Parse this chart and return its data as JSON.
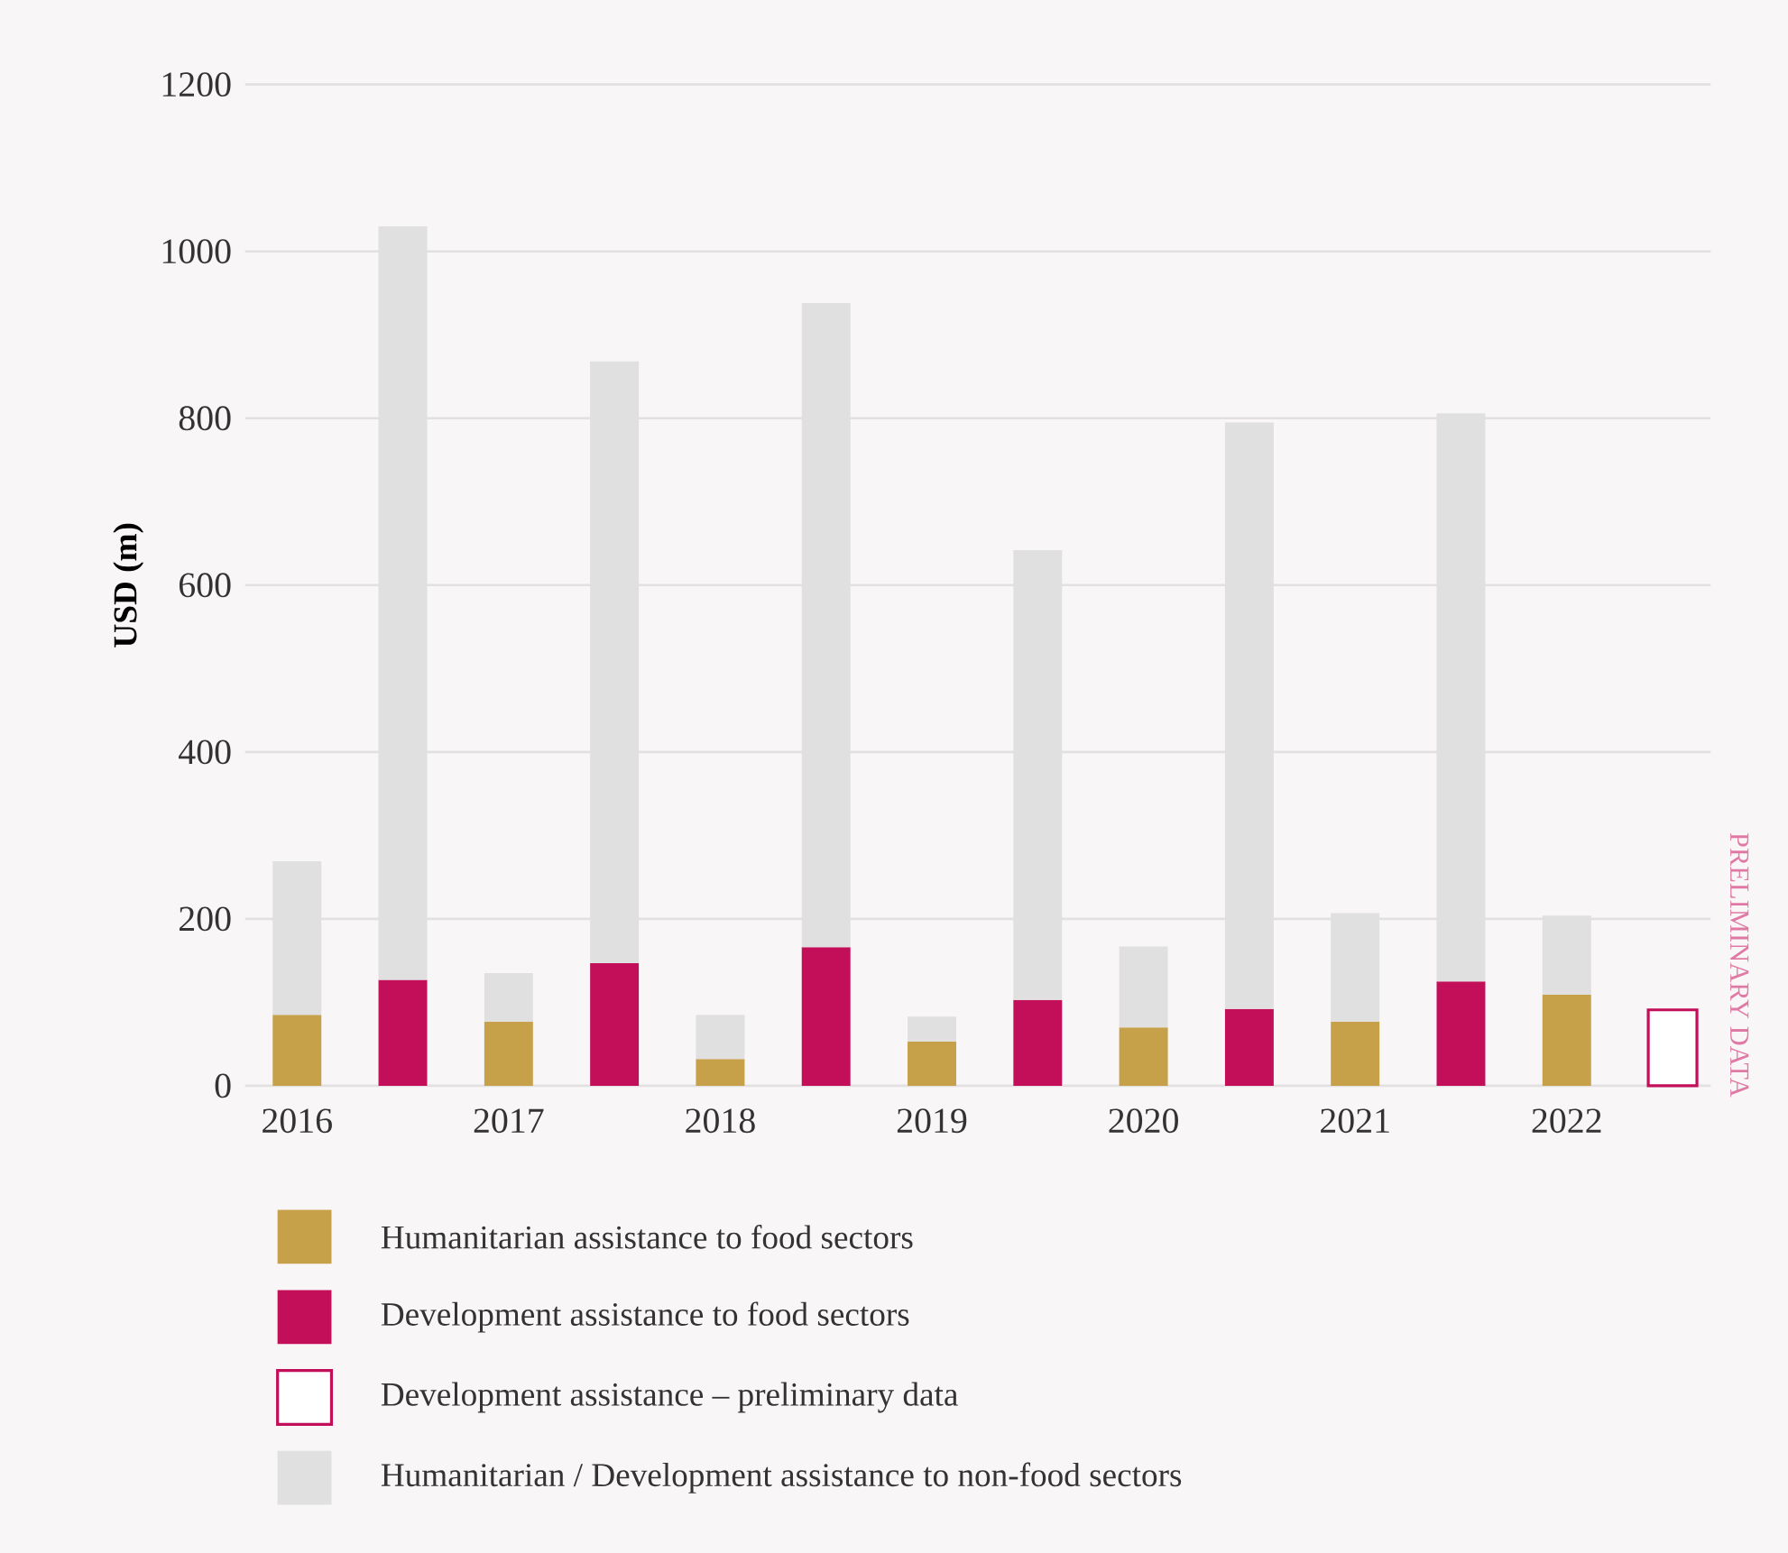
{
  "chart_data": {
    "type": "bar",
    "stacked": true,
    "ylabel": "USD (m)",
    "categories": [
      "2016",
      null,
      "2017",
      null,
      "2018",
      null,
      "2019",
      null,
      "2020",
      null,
      "2021",
      null,
      "2022",
      null
    ],
    "series": [
      {
        "name": "Humanitarian assistance to food sectors",
        "color": "#c6a14a",
        "values": [
          85,
          null,
          77,
          null,
          32,
          null,
          53,
          null,
          70,
          null,
          77,
          null,
          109,
          null
        ]
      },
      {
        "name": "Development assistance to food sectors",
        "color": "#c30f5a",
        "values": [
          null,
          127,
          null,
          147,
          null,
          166,
          null,
          103,
          null,
          92,
          null,
          125,
          null,
          null
        ]
      },
      {
        "name": "Development assistance – preliminary data",
        "color": "#c30f5a",
        "line_style": "solid",
        "values": [
          null,
          null,
          null,
          null,
          null,
          null,
          null,
          null,
          null,
          null,
          null,
          null,
          null,
          91
        ]
      },
      {
        "name": "Humanitarian / Development assistance to non-food sectors",
        "color": "#e0e0e0",
        "values": [
          184,
          903,
          58,
          721,
          53,
          772,
          30,
          539,
          97,
          703,
          130,
          681,
          95,
          null
        ]
      }
    ],
    "ylim": [
      0,
      1200
    ],
    "yticks": [
      0,
      200,
      400,
      600,
      800,
      1000,
      1200
    ],
    "grid": "y",
    "legend": "bottom",
    "annotations": [
      "PRELIMINARY DATA"
    ]
  }
}
